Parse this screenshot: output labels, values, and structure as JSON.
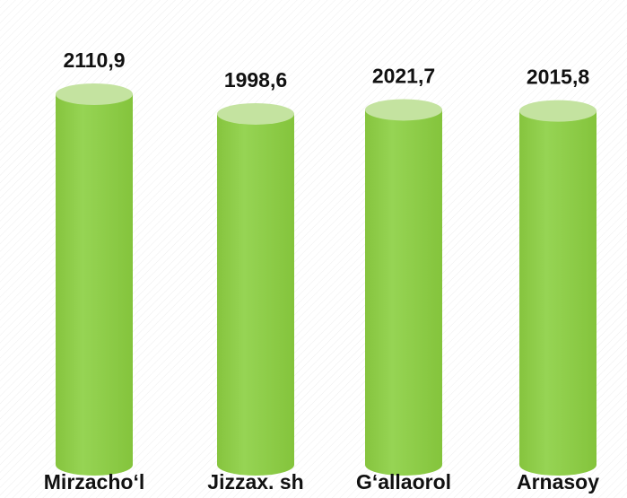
{
  "chart_data": {
    "type": "bar",
    "categories": [
      "Mirzacho‘l",
      "Jizzax. sh",
      "G‘allaorol",
      "Arnasoy"
    ],
    "values": [
      2110.9,
      1998.6,
      2021.7,
      2015.8
    ],
    "value_labels": [
      "2110,9",
      "1998,6",
      "2021,7",
      "2015,8"
    ],
    "color": "#92d050"
  }
}
